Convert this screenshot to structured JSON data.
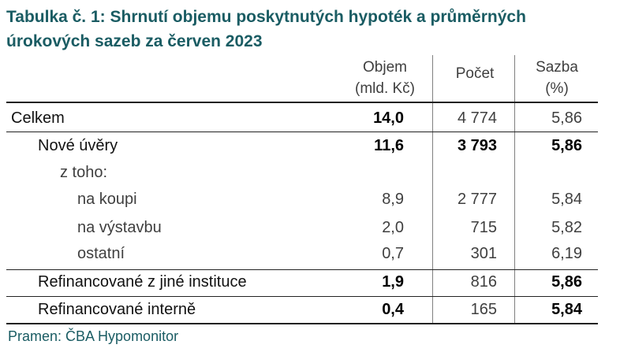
{
  "title": "Tabulka č. 1: Shrnutí objemu poskytnutých hypoték a průměrných úrokových sazeb za červen 2023",
  "columns": {
    "objem_line1": "Objem",
    "objem_line2": "(mld. Kč)",
    "pocet": "Počet",
    "sazba_line1": "Sazba",
    "sazba_line2": "(%)"
  },
  "rows": [
    {
      "label": "Celkem",
      "objem": "14,0",
      "pocet": "4 774",
      "sazba": "5,86"
    },
    {
      "label": "Nové úvěry",
      "objem": "11,6",
      "pocet": "3 793",
      "sazba": "5,86"
    },
    {
      "label": "z toho:",
      "objem": "",
      "pocet": "",
      "sazba": ""
    },
    {
      "label": "na koupi",
      "objem": "8,9",
      "pocet": "2 777",
      "sazba": "5,84"
    },
    {
      "label": "na výstavbu",
      "objem": "2,0",
      "pocet": "715",
      "sazba": "5,82"
    },
    {
      "label": "ostatní",
      "objem": "0,7",
      "pocet": "301",
      "sazba": "6,19"
    },
    {
      "label": "Refinancované z jiné instituce",
      "objem": "1,9",
      "pocet": "816",
      "sazba": "5,86"
    },
    {
      "label": "Refinancované interně",
      "objem": "0,4",
      "pocet": "165",
      "sazba": "5,84"
    }
  ],
  "source": "Pramen: ČBA Hypomonitor"
}
